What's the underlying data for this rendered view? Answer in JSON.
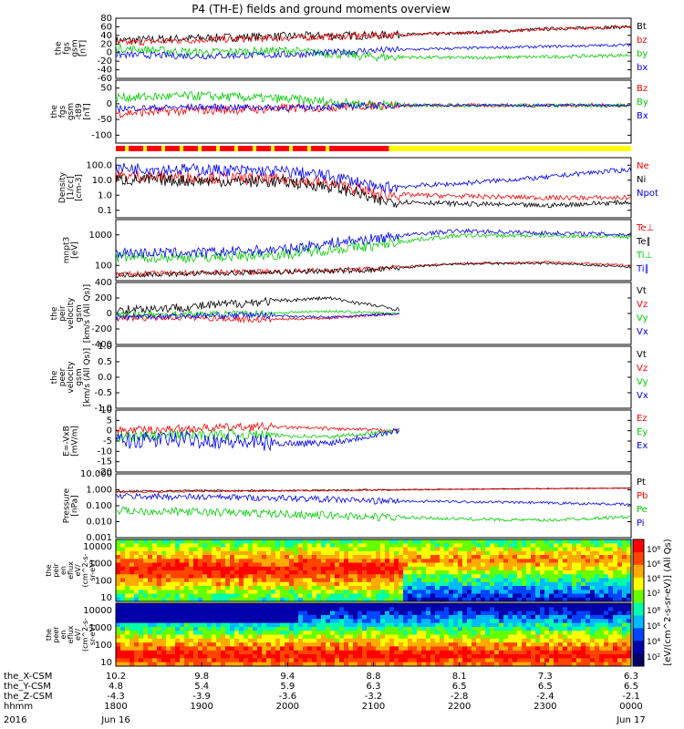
{
  "chart_data": {
    "type": "line",
    "title": "P4 (TH-E) fields and ground moments overview",
    "time_ticks": [
      "1800",
      "1900",
      "2000",
      "2100",
      "2200",
      "2300",
      "0000"
    ],
    "date_labels": {
      "year": "2016",
      "start": "Jun 16",
      "end": "Jun 17"
    },
    "ephemeris": {
      "rows": [
        {
          "label": "the_X-CSM",
          "values": [
            "10.2",
            "9.8",
            "9.4",
            "8.8",
            "8.1",
            "7.3",
            "6.3"
          ]
        },
        {
          "label": "the_Y-CSM",
          "values": [
            "4.8",
            "5.4",
            "5.9",
            "6.3",
            "6.5",
            "6.5",
            "6.5"
          ]
        },
        {
          "label": "the_Z-CSM",
          "values": [
            "-4.3",
            "-3.9",
            "-3.6",
            "-3.2",
            "-2.8",
            "-2.4",
            "-2.1"
          ]
        },
        {
          "label": "hhmm",
          "values": [
            "1800",
            "1900",
            "2000",
            "2100",
            "2200",
            "2300",
            "0000"
          ]
        }
      ]
    },
    "panels": [
      {
        "id": "fgs_gsm",
        "ylabel_lines": [
          "the",
          "fgs",
          "gsm",
          "[nT]"
        ],
        "ylim": [
          -60,
          80
        ],
        "yticks": [
          "80",
          "60",
          "40",
          "20",
          "0",
          "-20",
          "-40",
          "-60"
        ],
        "series": [
          {
            "name": "Bt",
            "color": "#000000",
            "profile": [
              28,
              34,
              38,
              40,
              45,
              55,
              60
            ],
            "noise": 10
          },
          {
            "name": "bz",
            "color": "#ff0000",
            "profile": [
              22,
              30,
              34,
              40,
              45,
              55,
              60
            ],
            "noise": 8
          },
          {
            "name": "by",
            "color": "#00cc00",
            "profile": [
              10,
              0,
              5,
              -10,
              -12,
              -10,
              -6
            ],
            "noise": 10
          },
          {
            "name": "bx",
            "color": "#0000ff",
            "profile": [
              -5,
              -8,
              -5,
              5,
              10,
              14,
              18
            ],
            "noise": 8
          }
        ]
      },
      {
        "id": "fgs_gsm_t89",
        "ylabel_lines": [
          "the",
          "fgs",
          "gsm",
          "-t89",
          "[nT]"
        ],
        "ylim": [
          -120,
          80
        ],
        "yticks": [
          "50",
          "0",
          "-50",
          "-100"
        ],
        "series": [
          {
            "name": "Bz",
            "color": "#ff0000",
            "profile": [
              -25,
              -15,
              -10,
              0,
              0,
              0,
              0
            ],
            "noise": 15
          },
          {
            "name": "By",
            "color": "#00cc00",
            "profile": [
              25,
              30,
              20,
              2,
              0,
              0,
              0
            ],
            "noise": 15
          },
          {
            "name": "Bx",
            "color": "#0000ff",
            "profile": [
              -10,
              -5,
              -8,
              0,
              0,
              0,
              0
            ],
            "noise": 10
          }
        ]
      },
      {
        "id": "density",
        "ylabel_lines": [
          "Density",
          "[1/cc]",
          "[cm-3]"
        ],
        "log": true,
        "ylim": [
          0.1,
          100
        ],
        "yticks": [
          "100.0",
          "10.0",
          "1.0",
          "0.1"
        ],
        "series": [
          {
            "name": "Ne",
            "color": "#ff0000",
            "profile": [
              12,
              10,
              8,
              1.5,
              1.2,
              1.0,
              1.0
            ],
            "noise": 0.3
          },
          {
            "name": "Ni",
            "color": "#000000",
            "profile": [
              8,
              7,
              6,
              0.7,
              0.5,
              0.4,
              0.6
            ],
            "noise": 0.3
          },
          {
            "name": "Npot",
            "color": "#0000ff",
            "profile": [
              30,
              25,
              20,
              3,
              5,
              10,
              25
            ],
            "noise": 0.3
          }
        ]
      },
      {
        "id": "temperature",
        "ylabel_lines": [
          "mnpt3",
          "[eV]"
        ],
        "log": true,
        "ylim": [
          40,
          8000
        ],
        "yticks": [
          "1000",
          "100"
        ],
        "series": [
          {
            "name": "Te⊥",
            "color": "#ff0000",
            "profile": [
              70,
              80,
              90,
              110,
              180,
              200,
              150
            ],
            "noise": 0.1
          },
          {
            "name": "Te∥",
            "color": "#000000",
            "profile": [
              65,
              75,
              85,
              100,
              170,
              180,
              130
            ],
            "noise": 0.1
          },
          {
            "name": "Ti⊥",
            "color": "#00cc00",
            "profile": [
              300,
              300,
              400,
              800,
              2000,
              2000,
              1800
            ],
            "noise": 0.2
          },
          {
            "name": "Ti∥",
            "color": "#0000ff",
            "profile": [
              450,
              450,
              600,
              1500,
              3000,
              2500,
              2200
            ],
            "noise": 0.2
          }
        ]
      },
      {
        "id": "peir_velocity",
        "ylabel_lines": [
          "the",
          "peir",
          "velocity",
          "gsm",
          "[km/s (All Qs)]"
        ],
        "ylim": [
          -400,
          400
        ],
        "yticks": [
          "400",
          "200",
          "0",
          "-200",
          "-400"
        ],
        "t_end": 0.55,
        "series": [
          {
            "name": "Vt",
            "color": "#000000",
            "profile": [
              50,
              80,
              150,
              200,
              50
            ],
            "noise": 60
          },
          {
            "name": "Vz",
            "color": "#ff0000",
            "profile": [
              -60,
              -50,
              -80,
              -60,
              0
            ],
            "noise": 40
          },
          {
            "name": "Vy",
            "color": "#00cc00",
            "profile": [
              -20,
              -10,
              0,
              30,
              0
            ],
            "noise": 40
          },
          {
            "name": "Vx",
            "color": "#0000ff",
            "profile": [
              -40,
              -30,
              -20,
              -50,
              0
            ],
            "noise": 40
          }
        ]
      },
      {
        "id": "peer_velocity",
        "ylabel_lines": [
          "the",
          "peer",
          "velocity",
          "gsm",
          "[km/s (All Qs)]"
        ],
        "ylim": [
          -1,
          1
        ],
        "yticks": [
          "1.0",
          "0.5",
          "0.0",
          "-0.5",
          "-1.0"
        ],
        "legend": [
          "Vt",
          "Vz",
          "Vy",
          "Vx"
        ],
        "legend_colors": [
          "#000000",
          "#ff0000",
          "#00cc00",
          "#0000ff"
        ],
        "series": []
      },
      {
        "id": "efield",
        "ylabel_lines": [
          "E=-VxB",
          "[mV/m]"
        ],
        "ylim": [
          -20,
          10
        ],
        "yticks": [
          "10",
          "5",
          "0",
          "-5",
          "-10",
          "-15",
          "-20"
        ],
        "t_end": 0.55,
        "series": [
          {
            "name": "Ez",
            "color": "#ff0000",
            "profile": [
              0,
              1,
              2,
              1,
              0
            ],
            "noise": 2
          },
          {
            "name": "Ey",
            "color": "#00cc00",
            "profile": [
              -3,
              -2,
              -2,
              -3,
              0
            ],
            "noise": 2.5
          },
          {
            "name": "Ex",
            "color": "#0000ff",
            "profile": [
              -5,
              -4,
              -6,
              -6,
              0
            ],
            "noise": 4
          }
        ]
      },
      {
        "id": "pressure",
        "ylabel_lines": [
          "Pressure",
          "[nPa]"
        ],
        "log": true,
        "ylim": [
          0.001,
          10
        ],
        "yticks": [
          "10.000",
          "1.000",
          "0.100",
          "0.010",
          "0.001"
        ],
        "series": [
          {
            "name": "Pt",
            "color": "#000000",
            "profile": [
              0.8,
              0.9,
              0.9,
              1.0,
              1.1,
              1.2,
              1.3
            ],
            "noise": 0.05
          },
          {
            "name": "Pb",
            "color": "#ff0000",
            "profile": [
              0.7,
              0.8,
              0.85,
              0.95,
              1.05,
              1.15,
              1.25
            ],
            "noise": 0.05
          },
          {
            "name": "Pe",
            "color": "#00cc00",
            "profile": [
              0.05,
              0.04,
              0.03,
              0.02,
              0.015,
              0.012,
              0.02
            ],
            "noise": 0.25
          },
          {
            "name": "Pi",
            "color": "#0000ff",
            "profile": [
              0.4,
              0.35,
              0.3,
              0.2,
              0.18,
              0.15,
              0.12
            ],
            "noise": 0.2
          }
        ]
      }
    ],
    "spectrograms": [
      {
        "id": "peir_eflux",
        "ylabel_lines": [
          "the",
          "peir",
          "en",
          "eflux",
          "eV/",
          "(cm^2-s-",
          "sr-eV)"
        ],
        "yticks": [
          "10000",
          "1000",
          "100",
          "10"
        ]
      },
      {
        "id": "peer_eflux",
        "ylabel_lines": [
          "the",
          "peer",
          "en",
          "eflux",
          "eV/",
          "(cm^2-s-",
          "sr-eV)"
        ],
        "yticks": [
          "10000",
          "1000",
          "100",
          "10"
        ]
      }
    ],
    "colorbar": {
      "label": "[eV/(cm^2-s-sr-eV)] (All Qs)",
      "ticks_upper": [
        "10⁸",
        "10⁶",
        "10⁴",
        "10²"
      ],
      "ticks_lower": [
        "10⁸",
        "10⁶",
        "10⁴",
        "10²"
      ]
    },
    "mode_bar": {
      "colors": [
        "#ff0000",
        "#ffff00"
      ],
      "switch_fraction": 0.53
    }
  }
}
